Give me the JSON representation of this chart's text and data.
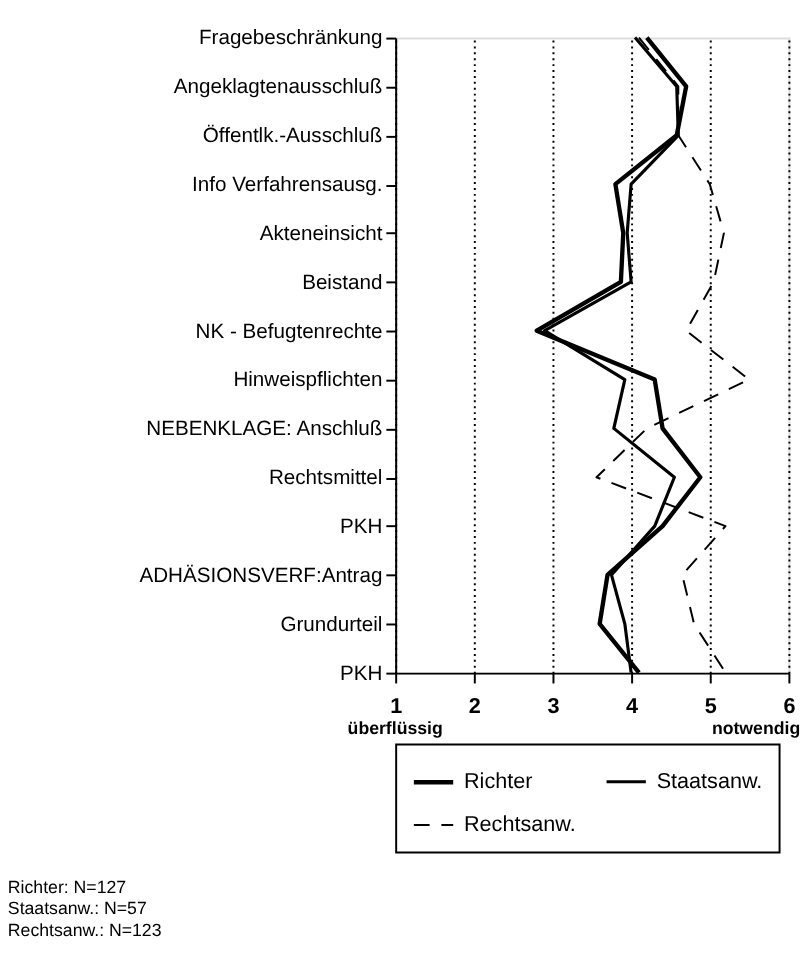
{
  "chart_data": {
    "type": "line",
    "categories": [
      "Fragebeschränkung",
      "Angeklagtenausschluß",
      "Öffentlk.-Ausschluß",
      "Info Verfahrensausg.",
      "Akteneinsicht",
      "Beistand",
      "NK - Befugtenrechte",
      "Hinweispflichten",
      "NEBENKLAGE: Anschluß",
      "Rechtsmittel",
      "PKH",
      "ADHÄSIONSVERF:Antrag",
      "Grundurteil",
      "PKH"
    ],
    "series": [
      {
        "name": "Richter",
        "color": "#000000",
        "line_style": "solid",
        "values": [
          4.2,
          4.7,
          4.58,
          3.8,
          3.9,
          3.87,
          2.8,
          4.3,
          4.4,
          4.88,
          4.4,
          3.7,
          3.6,
          4.1
        ]
      },
      {
        "name": "Staatsanw.",
        "color": "#000000",
        "line_style": "solid",
        "values": [
          4.05,
          4.58,
          4.6,
          4.0,
          3.95,
          4.0,
          2.9,
          3.92,
          3.78,
          4.55,
          4.3,
          3.75,
          3.92,
          4.0
        ]
      },
      {
        "name": "Rechtsanw.",
        "color": "#000000",
        "line_style": "dashed",
        "values": [
          4.1,
          4.6,
          4.6,
          5.0,
          5.18,
          5.05,
          4.7,
          5.5,
          4.2,
          3.56,
          5.2,
          4.65,
          4.8,
          5.2
        ]
      }
    ],
    "orientation": "horizontal",
    "xlim": [
      1,
      6
    ],
    "xticks": [
      1,
      2,
      3,
      4,
      5,
      6
    ],
    "grid": "x",
    "legend": "bottom",
    "marker": "none",
    "annotations": [
      "überflüssig",
      "notwendig",
      "Richter: N=127",
      "Staatsanw.: N=57",
      "Rechtsanw.: N=123"
    ]
  }
}
